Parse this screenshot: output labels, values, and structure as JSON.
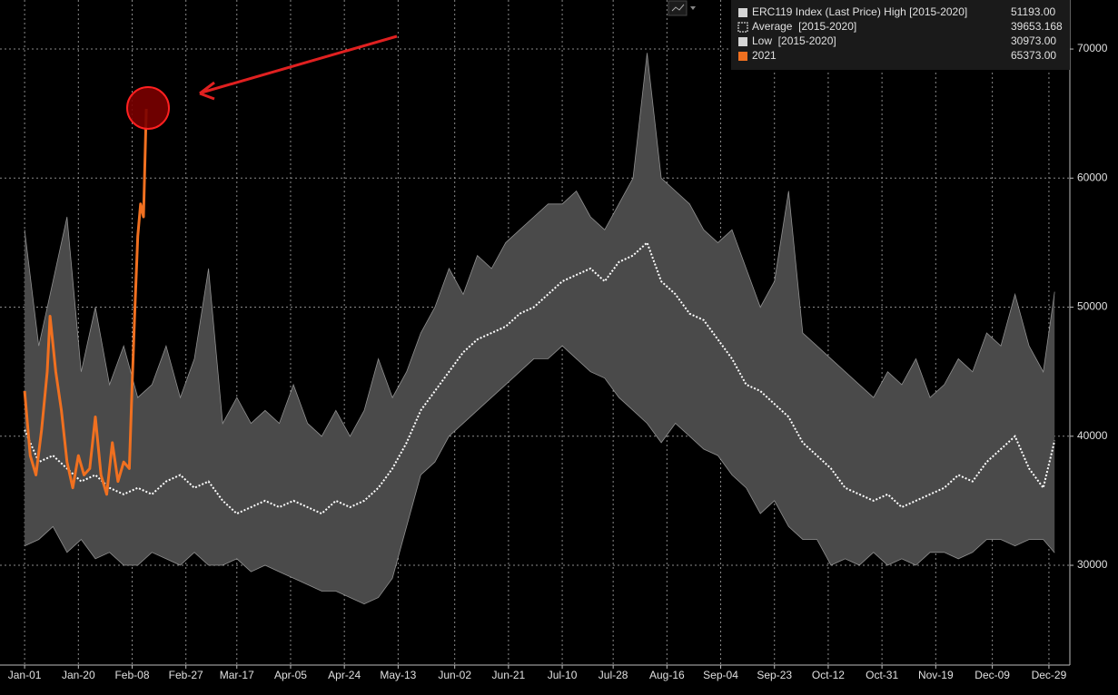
{
  "chart_data": {
    "type": "band-line",
    "x": [
      0,
      5,
      10,
      15,
      20,
      25,
      30,
      35,
      40,
      45,
      50,
      55,
      60,
      65,
      70,
      75,
      80,
      85,
      90,
      95,
      100,
      105,
      110,
      115,
      120,
      125,
      130,
      135,
      140,
      145,
      150,
      155,
      160,
      165,
      170,
      175,
      180,
      185,
      190,
      195,
      200,
      205,
      210,
      215,
      220,
      225,
      230,
      235,
      240,
      245,
      250,
      255,
      260,
      265,
      270,
      275,
      280,
      285,
      290,
      295,
      300,
      305,
      310,
      315,
      320,
      325,
      330,
      335,
      340,
      345,
      350,
      355,
      360,
      364
    ],
    "xlim": [
      -8.7,
      369.4
    ],
    "xticks": [
      {
        "value": 0,
        "label": "Jan-01"
      },
      {
        "value": 19,
        "label": "Jan-20"
      },
      {
        "value": 38,
        "label": "Feb-08"
      },
      {
        "value": 57,
        "label": "Feb-27"
      },
      {
        "value": 75,
        "label": "Mar-17"
      },
      {
        "value": 94,
        "label": "Apr-05"
      },
      {
        "value": 113,
        "label": "Apr-24"
      },
      {
        "value": 132,
        "label": "May-13"
      },
      {
        "value": 152,
        "label": "Jun-02"
      },
      {
        "value": 171,
        "label": "Jun-21"
      },
      {
        "value": 190,
        "label": "Jul-10"
      },
      {
        "value": 208,
        "label": "Jul-28"
      },
      {
        "value": 227,
        "label": "Aug-16"
      },
      {
        "value": 246,
        "label": "Sep-04"
      },
      {
        "value": 265,
        "label": "Sep-23"
      },
      {
        "value": 284,
        "label": "Oct-12"
      },
      {
        "value": 303,
        "label": "Oct-31"
      },
      {
        "value": 322,
        "label": "Nov-19"
      },
      {
        "value": 342,
        "label": "Dec-09"
      },
      {
        "value": 362,
        "label": "Dec-29"
      }
    ],
    "ylim": [
      22270,
      73800
    ],
    "yticks": [
      30000,
      40000,
      50000,
      60000,
      70000
    ],
    "grid": true,
    "band_color": "#4a4a4a",
    "series": [
      {
        "name": "ERC119 Index (Last Price) High [2015-2020]",
        "color": "#d4d4d4",
        "last": {
          "value": 51193,
          "label": "51193.00"
        },
        "values": [
          56000,
          47000,
          52000,
          57000,
          45000,
          50000,
          44000,
          47000,
          43000,
          44000,
          47000,
          43000,
          46000,
          53000,
          41000,
          43000,
          41000,
          42000,
          41000,
          44000,
          41000,
          40000,
          42000,
          40000,
          42000,
          46000,
          43000,
          45000,
          48000,
          50000,
          53000,
          51000,
          54000,
          53000,
          55000,
          56000,
          57000,
          58000,
          58000,
          59000,
          57000,
          56000,
          58000,
          60000,
          69700,
          60000,
          59000,
          58000,
          56000,
          55000,
          56000,
          53000,
          50000,
          52000,
          59000,
          48000,
          47000,
          46000,
          45000,
          44000,
          43000,
          45000,
          44000,
          46000,
          43000,
          44000,
          46000,
          45000,
          48000,
          47000,
          51000,
          47000,
          45000,
          51193
        ]
      },
      {
        "name": "Average  [2015-2020]",
        "color": "#ffffff",
        "last": {
          "value": 39653.168,
          "label": "39653.168"
        },
        "values": [
          40500,
          38000,
          38500,
          37500,
          36500,
          37000,
          36000,
          35500,
          36000,
          35500,
          36500,
          37000,
          36000,
          36500,
          35000,
          34000,
          34500,
          35000,
          34500,
          35000,
          34500,
          34000,
          35000,
          34500,
          35000,
          36000,
          37500,
          39500,
          42000,
          43500,
          45000,
          46500,
          47500,
          48000,
          48500,
          49500,
          50000,
          51000,
          52000,
          52500,
          53000,
          52000,
          53500,
          54000,
          55000,
          52000,
          51000,
          49500,
          49000,
          47500,
          46000,
          44000,
          43500,
          42500,
          41500,
          39500,
          38500,
          37500,
          36000,
          35500,
          35000,
          35500,
          34500,
          35000,
          35500,
          36000,
          37000,
          36500,
          38000,
          39000,
          40000,
          37500,
          36000,
          39653.168
        ]
      },
      {
        "name": "Low  [2015-2020]",
        "color": "#d4d4d4",
        "last": {
          "value": 30973,
          "label": "30973.00"
        },
        "values": [
          31500,
          32000,
          33000,
          31000,
          32000,
          30500,
          31000,
          30000,
          30000,
          31000,
          30500,
          30000,
          31000,
          30000,
          30000,
          30500,
          29500,
          30000,
          29500,
          29000,
          28500,
          28000,
          28000,
          27500,
          27000,
          27500,
          29000,
          33000,
          37000,
          38000,
          40000,
          41000,
          42000,
          43000,
          44000,
          45000,
          46000,
          46000,
          47000,
          46000,
          45000,
          44500,
          43000,
          42000,
          41000,
          39500,
          41000,
          40000,
          39000,
          38500,
          37000,
          36000,
          34000,
          35000,
          33000,
          32000,
          32000,
          30000,
          30500,
          30000,
          31000,
          30000,
          30500,
          30000,
          31000,
          31000,
          30500,
          31000,
          32000,
          32000,
          31500,
          32000,
          32000,
          30973
        ]
      },
      {
        "name": "2021",
        "color": "#f07020",
        "last": {
          "value": 65373,
          "label": "65373.00"
        },
        "x": [
          0,
          2,
          4,
          6,
          8,
          9,
          11,
          13,
          15,
          17,
          19,
          21,
          23,
          25,
          27,
          29,
          31,
          33,
          35,
          37,
          38,
          39,
          40,
          41,
          42,
          43
        ],
        "values": [
          43500,
          38500,
          37000,
          40500,
          45000,
          49300,
          45000,
          42000,
          38000,
          36000,
          38500,
          37000,
          37500,
          41500,
          37000,
          35500,
          39500,
          36500,
          38000,
          37500,
          44000,
          50000,
          55500,
          58000,
          57000,
          65373
        ]
      }
    ]
  }
}
